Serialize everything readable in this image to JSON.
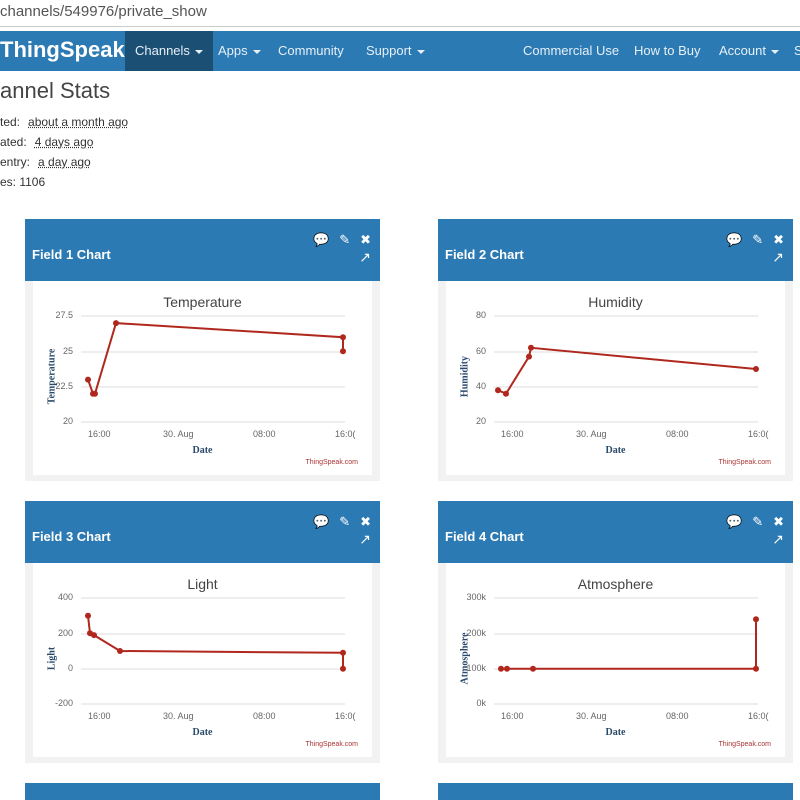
{
  "browser": {
    "url": "channels/549976/private_show"
  },
  "nav": {
    "brand": "ThingSpeak",
    "tm": "™",
    "items": [
      {
        "label": "Channels",
        "dropdown": true,
        "active": true
      },
      {
        "label": "Apps",
        "dropdown": true
      },
      {
        "label": "Community"
      },
      {
        "label": "Support",
        "dropdown": true
      },
      {
        "label": "Commercial Use"
      },
      {
        "label": "How to Buy"
      },
      {
        "label": "Account",
        "dropdown": true
      },
      {
        "label": "S"
      }
    ]
  },
  "stats": {
    "title": "annel Stats",
    "rows": [
      {
        "label": "ted:",
        "value": "about a month ago"
      },
      {
        "label": "ated:",
        "value": "4 days ago"
      },
      {
        "label": "entry:",
        "value": "a day ago"
      },
      {
        "label": "es: 1106",
        "value": ""
      }
    ]
  },
  "cards": [
    {
      "title": "Field 1 Chart",
      "chart": "Temperature",
      "ylabel": "Temperature",
      "yticks": [
        "27.5",
        "25",
        "22.5",
        "20"
      ],
      "xticks": [
        "16:00",
        "30. Aug",
        "08:00",
        "16:0("
      ],
      "xlabel": "Date",
      "credit": "ThingSpeak.com"
    },
    {
      "title": "Field 2 Chart",
      "chart": "Humidity",
      "ylabel": "Humidity",
      "yticks": [
        "80",
        "60",
        "40",
        "20"
      ],
      "xticks": [
        "16:00",
        "30. Aug",
        "08:00",
        "16:0("
      ],
      "xlabel": "Date",
      "credit": "ThingSpeak.com"
    },
    {
      "title": "Field 3 Chart",
      "chart": "Light",
      "ylabel": "Light",
      "yticks": [
        "400",
        "200",
        "0",
        "-200"
      ],
      "xticks": [
        "16:00",
        "30. Aug",
        "08:00",
        "16:0("
      ],
      "xlabel": "Date",
      "credit": "ThingSpeak.com"
    },
    {
      "title": "Field 4 Chart",
      "chart": "Atmosphere",
      "ylabel": "Atmosphere",
      "yticks": [
        "300k",
        "200k",
        "100k",
        "0k"
      ],
      "xticks": [
        "16:00",
        "30. Aug",
        "08:00",
        "16:0("
      ],
      "xlabel": "Date",
      "credit": "ThingSpeak.com"
    }
  ],
  "icons": {
    "comment": "💬",
    "edit": "✎",
    "close": "✖",
    "external": "↗"
  },
  "chart_data": [
    {
      "type": "line",
      "title": "Temperature",
      "xlabel": "Date",
      "ylabel": "Temperature",
      "ylim": [
        20,
        27.5
      ],
      "x": [
        "16:00",
        "16:10",
        "16:20",
        "18:30",
        "16:00+1d",
        "16:00+1d"
      ],
      "values": [
        23,
        22,
        22,
        27,
        26,
        25
      ],
      "color": "#b0281d"
    },
    {
      "type": "line",
      "title": "Humidity",
      "xlabel": "Date",
      "ylabel": "Humidity",
      "ylim": [
        20,
        80
      ],
      "x": [
        "15:40",
        "16:10",
        "18:30",
        "18:40",
        "16:00+1d"
      ],
      "values": [
        38,
        36,
        57,
        62,
        50
      ],
      "color": "#b0281d"
    },
    {
      "type": "line",
      "title": "Light",
      "xlabel": "Date",
      "ylabel": "Light",
      "ylim": [
        -200,
        400
      ],
      "x": [
        "15:40",
        "16:00",
        "16:20",
        "18:30",
        "16:00+1d",
        "16:00+1d"
      ],
      "values": [
        300,
        200,
        190,
        100,
        90,
        0
      ],
      "color": "#b0281d"
    },
    {
      "type": "line",
      "title": "Atmosphere",
      "xlabel": "Date",
      "ylabel": "Atmosphere",
      "ylim": [
        0,
        300000
      ],
      "x": [
        "15:40",
        "16:20",
        "18:30",
        "16:00+1d",
        "16:00+1d"
      ],
      "values": [
        100000,
        100000,
        100000,
        100000,
        240000
      ],
      "color": "#b0281d"
    }
  ]
}
